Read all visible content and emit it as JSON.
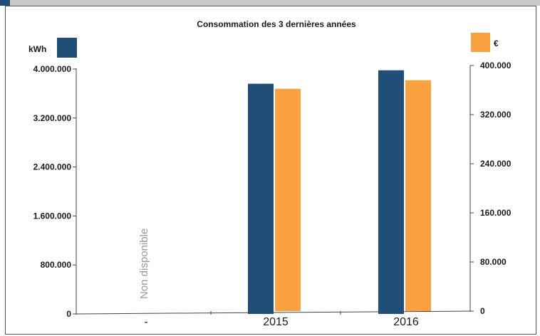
{
  "colors": {
    "kwh": "#1f4e79",
    "eur": "#f9a03f",
    "top_strip": "#c8c8c8",
    "top_accent": "#1f4e79"
  },
  "chart_data": {
    "type": "bar",
    "title": "Consommation des 3 dernières années",
    "categories": [
      "-",
      "2015",
      "2016"
    ],
    "y_left": {
      "unit_label": "kWh",
      "range": [
        0,
        4000000
      ],
      "ticks": [
        "0",
        "800.000",
        "1.600.000",
        "2.400.000",
        "3.200.000",
        "4.000.000"
      ]
    },
    "y_right": {
      "unit_label": "€",
      "range": [
        0,
        400000
      ],
      "ticks": [
        "0",
        "80.000",
        "160.000",
        "240.000",
        "320.000",
        "400.000"
      ]
    },
    "series": [
      {
        "name": "kWh",
        "axis": "left",
        "values": [
          null,
          3760000,
          3980000
        ]
      },
      {
        "name": "€",
        "axis": "right",
        "values": [
          null,
          362000,
          376000
        ]
      }
    ],
    "annotation": "Non disponible",
    "legend": "top",
    "grid": false
  }
}
